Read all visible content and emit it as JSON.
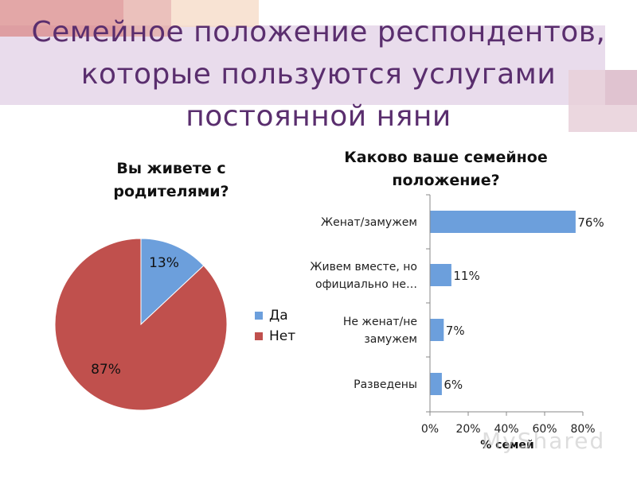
{
  "slide": {
    "title": "Семейное положение респондентов,\nкоторые пользуются услугами\nпостоянной няни",
    "watermark": "MyShared"
  },
  "colors": {
    "title": "#5a2e6e",
    "da": "#6c9fdc",
    "net": "#c0504d",
    "bar": "#6c9fdc",
    "band": "#e9dcec"
  },
  "chart_data": [
    {
      "type": "pie",
      "title": "Вы живете с\nродителями?",
      "slices": [
        {
          "name": "Да",
          "value": 13,
          "label": "13%"
        },
        {
          "name": "Нет",
          "value": 87,
          "label": "87%"
        }
      ],
      "legend": [
        "Да",
        "Нет"
      ],
      "legend_position": "right"
    },
    {
      "type": "bar",
      "orientation": "horizontal",
      "title": "Каково ваше семейное\nположение?",
      "categories": [
        "Женат/замужем",
        "Живем вместе, но\nофициально не…",
        "Не женат/не\nзамужем",
        "Разведены"
      ],
      "values": [
        76,
        11,
        7,
        6
      ],
      "data_labels": [
        "76%",
        "11%",
        "7%",
        "6%"
      ],
      "xlabel": "% семей",
      "xlim": [
        0,
        80
      ],
      "xticks": [
        "0%",
        "20%",
        "40%",
        "60%",
        "80%"
      ],
      "grid": false
    }
  ]
}
